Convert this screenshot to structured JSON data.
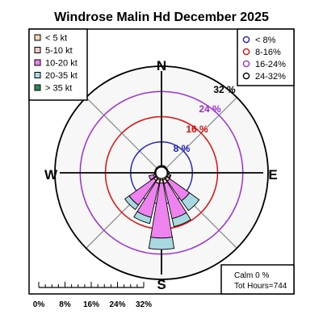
{
  "chart_data": {
    "type": "windrose",
    "title": "Windrose  Malin Hd December 2025",
    "directions": [
      "N",
      "NNE",
      "NE",
      "ENE",
      "E",
      "ESE",
      "SE",
      "SSE",
      "S",
      "SSW",
      "SW",
      "WSW",
      "W",
      "WNW",
      "NW",
      "NNW"
    ],
    "direction_labels": [
      "N",
      "E",
      "S",
      "W"
    ],
    "speed_bins": [
      {
        "label": "< 5  kt",
        "color": "#f4d7b8"
      },
      {
        "label": "5-10 kt",
        "color": "#f2c9c9"
      },
      {
        "label": "10-20 kt",
        "color": "#ee82ee"
      },
      {
        "label": "20-35 kt",
        "color": "#a8d8e0"
      },
      {
        "label": "> 35 kt",
        "color": "#2e8b57"
      }
    ],
    "frequency_rings": [
      {
        "label": "< 8%",
        "value": 8,
        "color": "#1f1fcc"
      },
      {
        "label": "8-16%",
        "value": 16,
        "color": "#e01010"
      },
      {
        "label": "16-24%",
        "value": 24,
        "color": "#9b30d9"
      },
      {
        "label": "24-32%",
        "value": 32,
        "color": "#000000"
      }
    ],
    "ring_value_labels": [
      "8 %",
      "16 %",
      "24 %",
      "32 %"
    ],
    "frequencies_percent": [
      [
        0.3,
        0.2,
        0.0,
        0.0,
        0.0
      ],
      [
        0.3,
        0.3,
        0.0,
        0.0,
        0.0
      ],
      [
        0.2,
        0.2,
        0.0,
        0.0,
        0.0
      ],
      [
        0.2,
        0.2,
        0.0,
        0.0,
        0.0
      ],
      [
        0.3,
        0.3,
        0.0,
        0.0,
        0.0
      ],
      [
        0.4,
        0.6,
        0.3,
        0.0,
        0.0
      ],
      [
        0.4,
        1.0,
        7.7,
        3.8,
        0.0
      ],
      [
        0.5,
        1.2,
        11.4,
        2.6,
        0.0
      ],
      [
        0.5,
        1.0,
        17.4,
        3.6,
        0.0
      ],
      [
        0.5,
        1.2,
        11.0,
        2.0,
        0.0
      ],
      [
        0.4,
        0.8,
        9.6,
        1.7,
        0.0
      ],
      [
        0.3,
        0.5,
        1.5,
        0.0,
        0.0
      ],
      [
        0.2,
        0.2,
        0.0,
        0.0,
        0.0
      ],
      [
        0.2,
        0.2,
        0.0,
        0.0,
        0.0
      ],
      [
        0.2,
        0.2,
        0.0,
        0.0,
        0.0
      ],
      [
        0.2,
        0.3,
        0.0,
        0.0,
        0.0
      ]
    ],
    "scale_bar_labels": [
      "0%",
      "8%",
      "16%",
      "24%",
      "32%"
    ],
    "calm": "Calm 0 %",
    "total_hours": "Tot Hours=744"
  }
}
